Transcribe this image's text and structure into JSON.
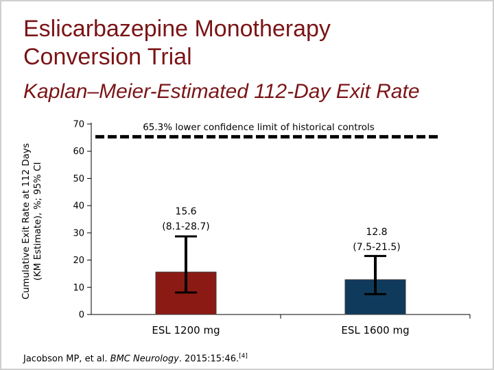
{
  "slide": {
    "title_line1": "Eslicarbazepine Monotherapy",
    "title_line2": "Conversion Trial",
    "subtitle": "Kaplan–Meier-Estimated 112-Day Exit Rate",
    "citation": {
      "prefix": "Jacobson MP, et al. ",
      "journal": "BMC Neurology",
      "details": ". 2015:15:46.",
      "ref": "[4]"
    }
  },
  "chart_data": {
    "type": "bar",
    "title": "Kaplan–Meier-Estimated 112-Day Exit Rate",
    "ylabel_line1": "Cumulative Exit Rate at 112 Days",
    "ylabel_line2": "(KM Estimate), %; 95% CI",
    "xlabel": "",
    "ylim": [
      0,
      70
    ],
    "yticks": [
      0,
      10,
      20,
      30,
      40,
      50,
      60,
      70
    ],
    "categories": [
      "ESL 1200 mg",
      "ESL 1600 mg"
    ],
    "values": [
      15.6,
      12.8
    ],
    "ci_low": [
      8.1,
      7.5
    ],
    "ci_high": [
      28.7,
      21.5
    ],
    "value_labels": [
      "15.6",
      "12.8"
    ],
    "ci_labels": [
      "(8.1-28.7)",
      "(7.5-21.5)"
    ],
    "bar_colors": [
      "#8b1a14",
      "#0f3a5c"
    ],
    "reference_line": {
      "value": 65.3,
      "label": "65.3% lower confidence limit of historical controls",
      "style": "dashed"
    }
  }
}
